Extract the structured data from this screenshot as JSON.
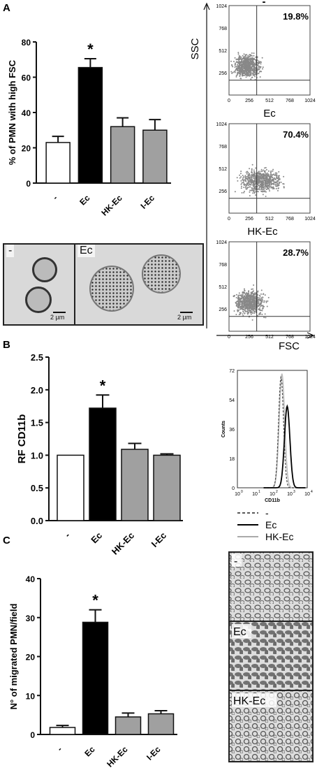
{
  "panels": {
    "a": {
      "letter": "A"
    },
    "b": {
      "letter": "B"
    },
    "c": {
      "letter": "C"
    }
  },
  "colors": {
    "control": "#ffffff",
    "ec": "#000000",
    "hk": "#a0a0a0",
    "ie": "#a0a0a0"
  },
  "chart_data": [
    {
      "type": "bar",
      "ylabel": "% of PMN with high FSC",
      "categories": [
        "-",
        "Ec",
        "HK-Ec",
        "I-Ec"
      ],
      "values": [
        23,
        65.5,
        32,
        30
      ],
      "errors": [
        3.5,
        5,
        5,
        6
      ],
      "ylim": [
        0,
        80
      ],
      "yticks": [
        "0",
        "20",
        "40",
        "60",
        "80"
      ],
      "significance": "*",
      "significant_index": 1
    },
    {
      "type": "scatter",
      "x_axis_label": "FSC",
      "y_axis_label": "SSC",
      "tick_labels": [
        "0",
        "256",
        "512",
        "768",
        "1024"
      ],
      "xlim": [
        0,
        1024
      ],
      "ylim": [
        0,
        1024
      ],
      "plots": [
        {
          "title": "-",
          "percentage": "19.8%",
          "gate_x": 350,
          "gate_y": 170
        },
        {
          "title": "Ec",
          "percentage": "70.4%",
          "gate_x": 350,
          "gate_y": 170
        },
        {
          "title": "HK-Ec",
          "percentage": "28.7%",
          "gate_x": 350,
          "gate_y": 170
        }
      ]
    },
    {
      "type": "bar",
      "ylabel": "RF CD11b",
      "categories": [
        "-",
        "Ec",
        "HK-Ec",
        "I-Ec"
      ],
      "values": [
        1.0,
        1.72,
        1.09,
        1.0
      ],
      "errors": [
        0,
        0.2,
        0.09,
        0.02
      ],
      "ylim": [
        0,
        2.5
      ],
      "yticks": [
        "0.0",
        "0.5",
        "1.0",
        "1.5",
        "2.0",
        "2.5"
      ],
      "significance": "*",
      "significant_index": 1
    },
    {
      "type": "line",
      "ylabel": "Counts",
      "xlabel": "CD11b",
      "yticks": [
        "0",
        "18",
        "36",
        "54",
        "72"
      ],
      "xtick_base": "10",
      "xtick_exponents": [
        "0",
        "1",
        "2",
        "3",
        "4"
      ],
      "ylim": [
        0,
        72
      ],
      "legend": [
        {
          "name": "-",
          "style": "dashed"
        },
        {
          "name": "Ec",
          "style": "solid-black"
        },
        {
          "name": "HK-Ec",
          "style": "solid-gray"
        }
      ]
    },
    {
      "type": "bar",
      "ylabel": "N° of migrated PMN/field",
      "categories": [
        "-",
        "Ec",
        "HK-Ec",
        "I-Ec"
      ],
      "values": [
        1.8,
        28.8,
        4.5,
        5.3
      ],
      "errors": [
        0.5,
        3.2,
        1.0,
        0.8
      ],
      "ylim": [
        0,
        40
      ],
      "yticks": [
        "0",
        "10",
        "20",
        "30",
        "40"
      ],
      "significance": "*",
      "significant_index": 1
    }
  ],
  "micrographs_a": {
    "left_label": "-",
    "right_label": "Ec",
    "scale_left": "2 µm",
    "scale_right": "2 µm"
  },
  "micrographs_c": {
    "labels": [
      "-",
      "Ec",
      "HK-Ec"
    ]
  }
}
